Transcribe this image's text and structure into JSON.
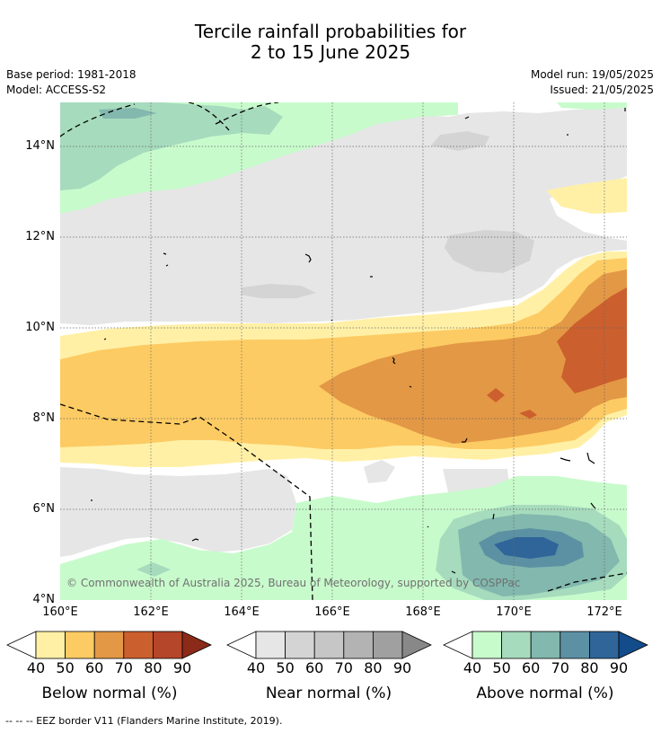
{
  "title": {
    "line1": "Tercile rainfall probabilities for",
    "line2": "2 to 15 June 2025"
  },
  "info": {
    "base_period": "Base period: 1981-2018",
    "model": "Model: ACCESS-S2",
    "model_run": "Model run: 19/05/2025",
    "issued": "Issued: 21/05/2025"
  },
  "map": {
    "lat_labels": [
      "14°N",
      "12°N",
      "10°N",
      "8°N",
      "6°N",
      "4°N"
    ],
    "lon_labels": [
      "160°E",
      "162°E",
      "164°E",
      "166°E",
      "168°E",
      "170°E",
      "172°E"
    ],
    "copyright": "© Commonwealth of Australia 2025, Bureau of Meteorology, supported by COSPPac",
    "colors": {
      "below": [
        "#fff0a6",
        "#fdcb63",
        "#e39845",
        "#cc5f2e",
        "#b5462a",
        "#8b2a18"
      ],
      "near": [
        "#e6e6e6",
        "#d4d4d4",
        "#c6c6c6",
        "#b3b3b3",
        "#a0a0a0",
        "#888888"
      ],
      "above": [
        "#c8fbcc",
        "#a6dbbd",
        "#82b8ae",
        "#5c91a4",
        "#2f6599",
        "#134c8a"
      ]
    }
  },
  "colorbars": [
    {
      "label": "Below normal (%)",
      "ticks": [
        "40",
        "50",
        "60",
        "70",
        "80",
        "90"
      ]
    },
    {
      "label": "Near normal (%)",
      "ticks": [
        "40",
        "50",
        "60",
        "70",
        "80",
        "90"
      ]
    },
    {
      "label": "Above normal (%)",
      "ticks": [
        "40",
        "50",
        "60",
        "70",
        "80",
        "90"
      ]
    }
  ],
  "footnote": "--  --  -- EEZ border V11 (Flanders Marine Institute, 2019)."
}
